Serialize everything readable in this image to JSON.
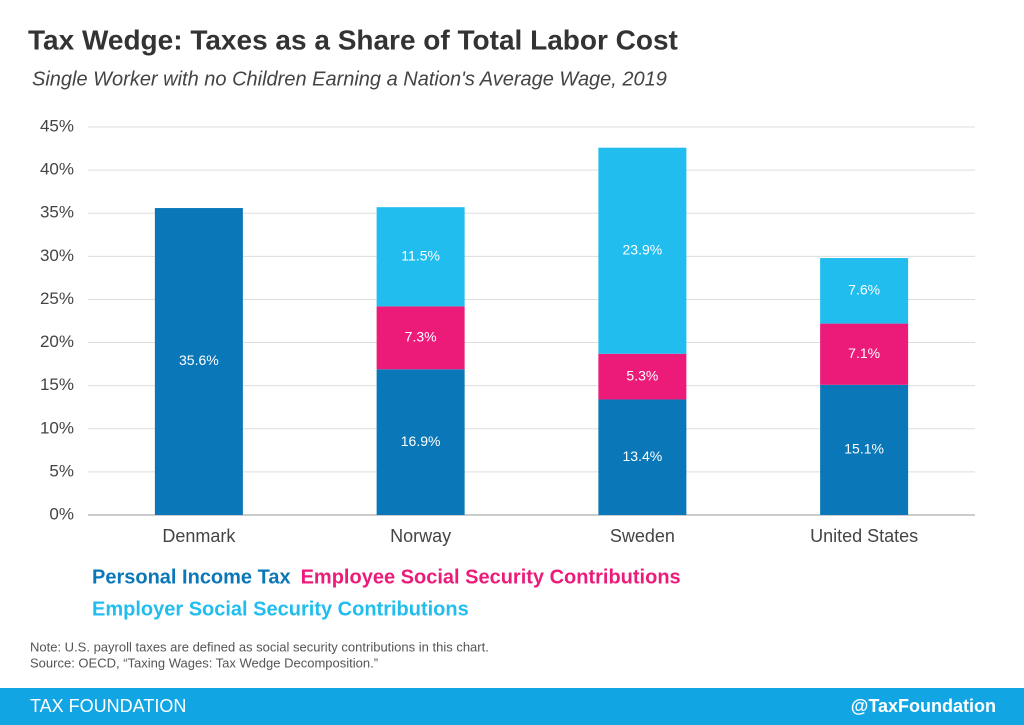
{
  "chart_data": {
    "type": "stacked_bar",
    "title": "Tax Wedge: Taxes as a Share of Total Labor Cost",
    "subtitle": "Single Worker with no Children Earning a Nation's Average Wage, 2019",
    "categories": [
      "Denmark",
      "Norway",
      "Sweden",
      "United States"
    ],
    "series": [
      {
        "name": "Personal Income Tax",
        "color": "#0a77b8",
        "values": [
          35.6,
          16.9,
          13.4,
          15.1
        ],
        "value_labels": [
          "35.6%",
          "16.9%",
          "13.4%",
          "15.1%"
        ]
      },
      {
        "name": "Employee Social Security Contributions",
        "color": "#ec1b7a",
        "values": [
          null,
          7.3,
          5.3,
          7.1
        ],
        "value_labels": [
          null,
          "7.3%",
          "5.3%",
          "7.1%"
        ]
      },
      {
        "name": "Employer Social Security Contributions",
        "color": "#20bdee",
        "values": [
          null,
          11.5,
          23.9,
          7.6
        ],
        "value_labels": [
          null,
          "11.5%",
          "23.9%",
          "7.6%"
        ]
      }
    ],
    "ylim": [
      0,
      45
    ],
    "yticks": [
      {
        "value": 0,
        "label": "0%"
      },
      {
        "value": 5,
        "label": "5%"
      },
      {
        "value": 10,
        "label": "10%"
      },
      {
        "value": 15,
        "label": "15%"
      },
      {
        "value": 20,
        "label": "20%"
      },
      {
        "value": 25,
        "label": "25%"
      },
      {
        "value": 30,
        "label": "30%"
      },
      {
        "value": 35,
        "label": "35%"
      },
      {
        "value": 40,
        "label": "40%"
      },
      {
        "value": 45,
        "label": "45%"
      }
    ],
    "grid": true,
    "note": "Note: U.S. payroll taxes are defined as social security contributions in this chart.",
    "source": "Source: OECD, “Taxing Wages: Tax Wedge Decomposition.”",
    "footer_left": "TAX FOUNDATION",
    "footer_right": "@TaxFoundation"
  }
}
